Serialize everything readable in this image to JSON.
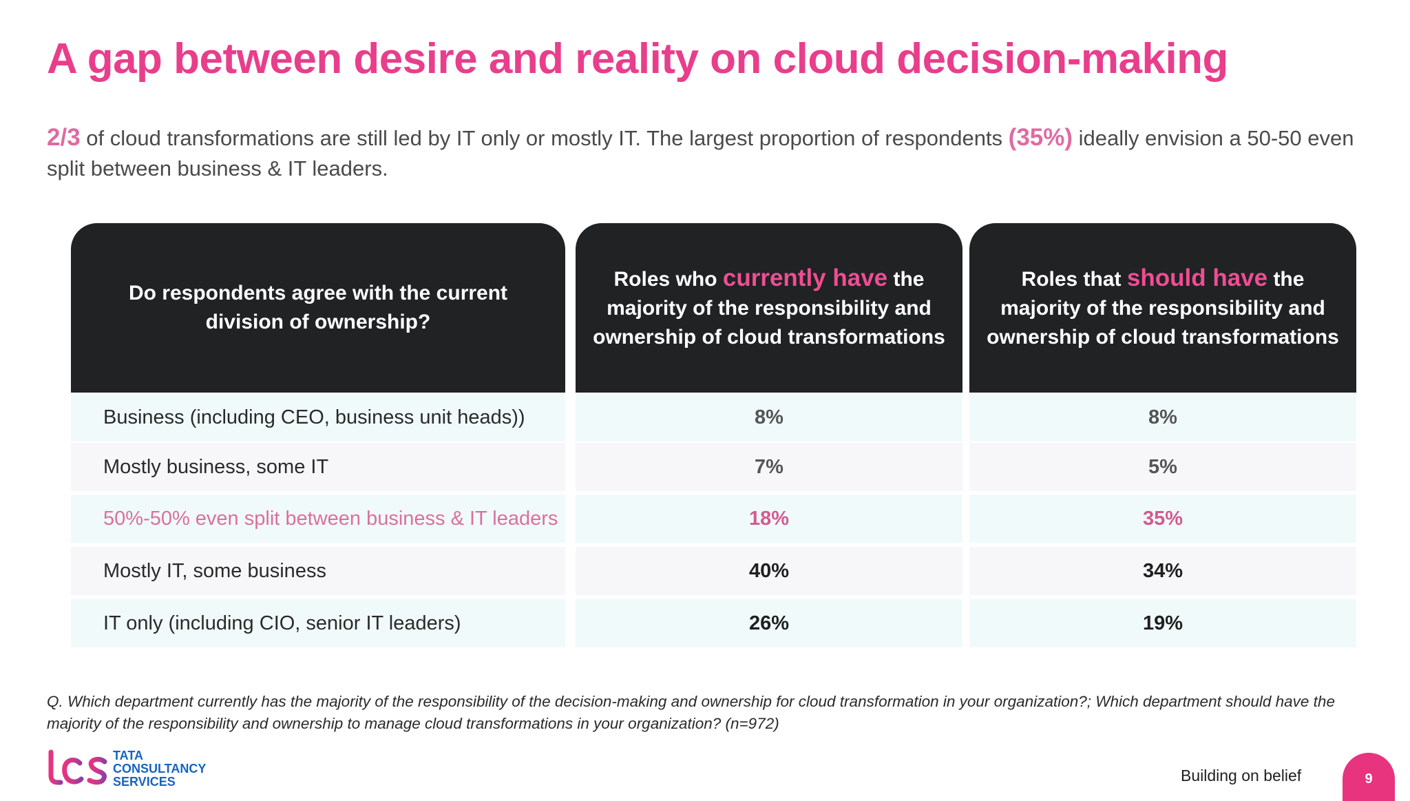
{
  "title": "A gap between desire and reality on cloud decision-making",
  "subtitle": {
    "hl1": "2/3",
    "text1": " of cloud transformations are still led by IT only or mostly IT. The largest proportion of respondents ",
    "hl2": "(35%)",
    "text2": " ideally envision a 50-50 even split between business & IT leaders."
  },
  "chart_data": {
    "type": "table",
    "columns": [
      {
        "parts": [
          "Do respondents  agree with the current division of ownership?"
        ]
      },
      {
        "pre": "Roles who ",
        "highlight": "currently have",
        "post": " the majority of the responsibility and ownership of cloud transformations"
      },
      {
        "pre": "Roles that ",
        "highlight": "should have",
        "post": " the majority of the responsibility and ownership of cloud transformations"
      }
    ],
    "rows": [
      {
        "label": "Business (including CEO, business unit heads))",
        "current": "8%",
        "should": "8%"
      },
      {
        "label": "Mostly business, some IT",
        "current": "7%",
        "should": "5%"
      },
      {
        "label": "50%-50% even split between business & IT leaders",
        "current": "18%",
        "should": "35%"
      },
      {
        "label": "Mostly IT, some business",
        "current": "40%",
        "should": "34%"
      },
      {
        "label": "IT only (including CIO, senior IT leaders)",
        "current": "26%",
        "should": "19%"
      }
    ],
    "highlight_color": "#e83e8c"
  },
  "footnote": "Q. Which department currently has the majority of the responsibility of the decision-making and ownership for cloud transformation in your organization?; Which department should have the majority of the responsibility and ownership to manage cloud transformations in your organization? (n=972)",
  "logo": {
    "mark": "tcs",
    "line1": "TATA",
    "line2": "CONSULTANCY",
    "line3": "SERVICES"
  },
  "tagline": "Building on belief",
  "page_number": "9"
}
